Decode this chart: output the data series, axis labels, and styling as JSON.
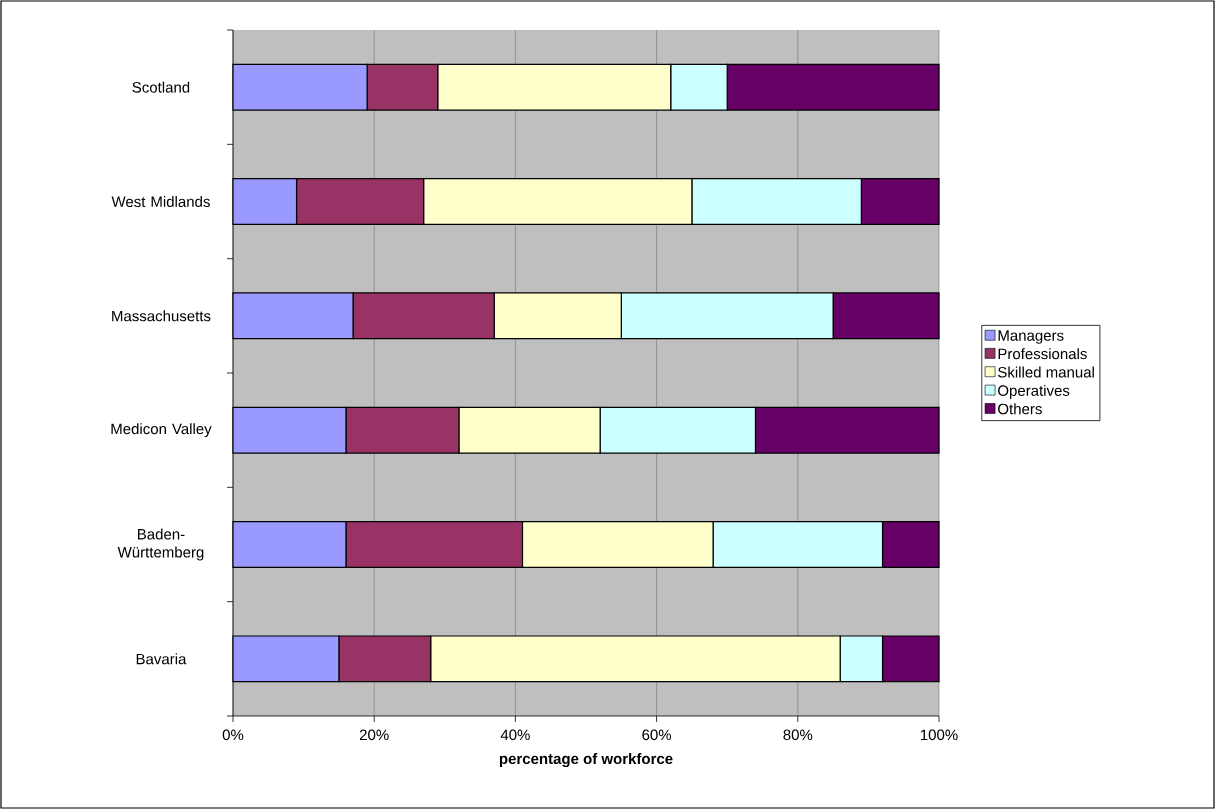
{
  "chart_data": {
    "type": "bar",
    "orientation": "horizontal",
    "stacked": true,
    "xlabel": "percentage of workforce",
    "categories": [
      "Scotland",
      "West Midlands",
      "Massachusetts",
      "Medicon Valley",
      "Baden-Württemberg",
      "Bavaria"
    ],
    "series": [
      {
        "name": "Managers",
        "color": "#9999ff",
        "values": [
          19,
          9,
          17,
          16,
          16,
          15
        ]
      },
      {
        "name": "Professionals",
        "color": "#993366",
        "values": [
          10,
          18,
          20,
          16,
          25,
          13
        ]
      },
      {
        "name": "Skilled manual",
        "color": "#ffffcc",
        "values": [
          33,
          38,
          18,
          20,
          27,
          58
        ]
      },
      {
        "name": "Operatives",
        "color": "#ccffff",
        "values": [
          8,
          24,
          30,
          22,
          24,
          6
        ]
      },
      {
        "name": "Others",
        "color": "#660066",
        "values": [
          30,
          11,
          15,
          26,
          8,
          8
        ]
      }
    ],
    "xlim": [
      0,
      100
    ],
    "xticks": [
      {
        "value": 0,
        "label": "0%"
      },
      {
        "value": 20,
        "label": "20%"
      },
      {
        "value": 40,
        "label": "40%"
      },
      {
        "value": 60,
        "label": "60%"
      },
      {
        "value": 80,
        "label": "80%"
      },
      {
        "value": 100,
        "label": "100%"
      }
    ],
    "grid": "x",
    "legend": "right"
  }
}
